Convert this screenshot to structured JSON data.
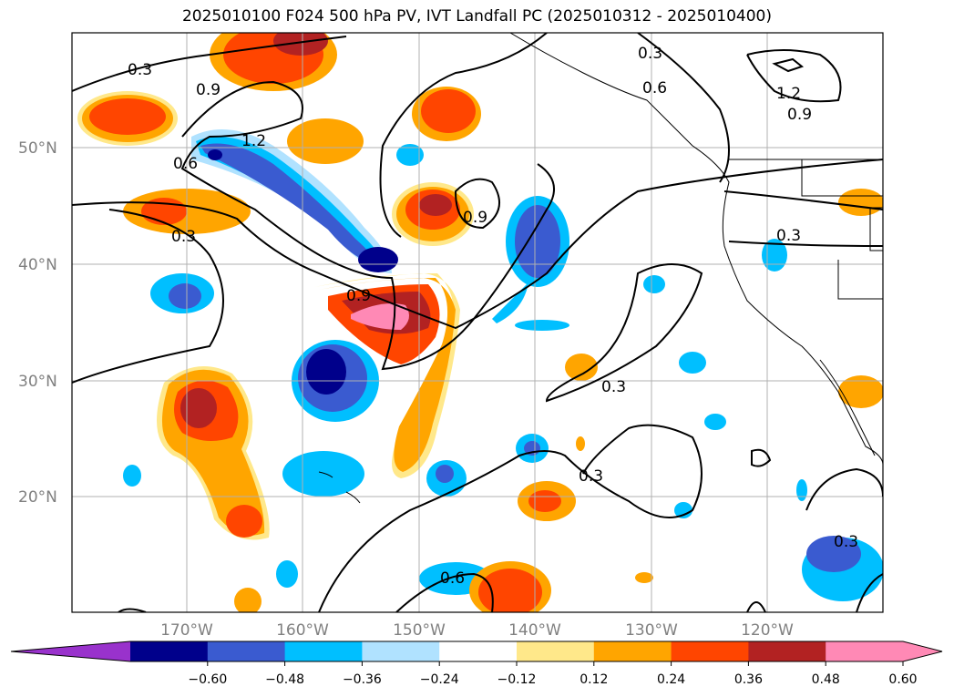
{
  "title": "2025010100 F024 500 hPa PV, IVT Landfall PC (2025010312 - 2025010400)",
  "lat_labels": [
    "50°N",
    "40°N",
    "30°N",
    "20°N"
  ],
  "lon_labels": [
    "170°W",
    "160°W",
    "150°W",
    "140°W",
    "130°W",
    "120°W"
  ],
  "contour_labels": [
    "0.3",
    "0.9",
    "1.2",
    "0.6",
    "0.3",
    "0.9",
    "0.9",
    "0.3",
    "0.6",
    "1.2",
    "0.9",
    "0.3",
    "0.3",
    "0.3",
    "0.6",
    "0.3"
  ],
  "colorbar": {
    "ticks": [
      "−0.60",
      "−0.48",
      "−0.36",
      "−0.24",
      "−0.12",
      "0.12",
      "0.24",
      "0.36",
      "0.48",
      "0.60"
    ],
    "colors": [
      "#9932cc",
      "#00008b",
      "#3a5bd0",
      "#00bfff",
      "#b0e2ff",
      "#ffffff",
      "#ffe88a",
      "#ffa500",
      "#ff4500",
      "#b22222",
      "#ff89b5",
      "#ff89b5"
    ]
  }
}
